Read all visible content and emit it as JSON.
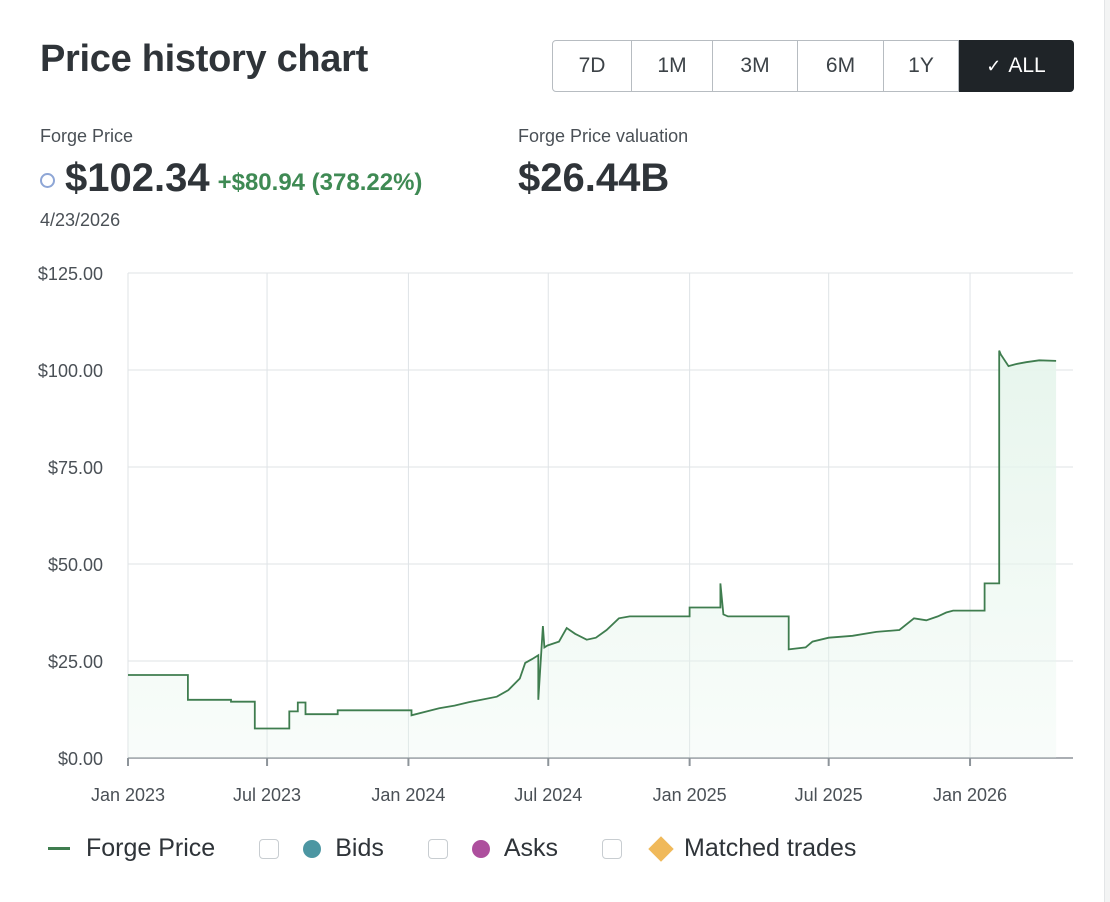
{
  "header": {
    "title": "Price history chart",
    "ranges": [
      "7D",
      "1M",
      "3M",
      "6M",
      "1Y",
      "ALL"
    ],
    "active_range": "ALL",
    "check_glyph": "✓"
  },
  "stats": {
    "price_label": "Forge Price",
    "price": "$102.34",
    "change": "+$80.94 (378.22%)",
    "valuation_label": "Forge Price valuation",
    "valuation": "$26.44B",
    "date": "4/23/2026"
  },
  "colors": {
    "line": "#3f7d4f",
    "area": "#e6f5ec",
    "grid": "#dfe3e6",
    "change_positive": "#3f8a54",
    "bids": "#4c96a2",
    "asks": "#ad4f9d",
    "matched_trades": "#f0b95a",
    "price_dot": "#8ea6d6"
  },
  "legend": {
    "forge_price": "Forge Price",
    "bids": "Bids",
    "asks": "Asks",
    "matched_trades": "Matched trades"
  },
  "chart_data": {
    "type": "area",
    "title": "",
    "xlabel": "",
    "ylabel": "",
    "x_ticks": [
      "Jan 2023",
      "Jul 2023",
      "Jan 2024",
      "Jul 2024",
      "Jan 2025",
      "Jul 2025",
      "Jan 2026"
    ],
    "y_ticks": [
      "$0.00",
      "$25.00",
      "$50.00",
      "$75.00",
      "$100.00",
      "$125.00"
    ],
    "ylim": [
      0,
      125
    ],
    "xlim": [
      "2023-01-01",
      "2026-05-15"
    ],
    "grid": true,
    "series": [
      {
        "name": "Forge Price",
        "x": [
          "2023-01-01",
          "2023-03-20",
          "2023-03-20",
          "2023-05-15",
          "2023-05-15",
          "2023-06-15",
          "2023-06-15",
          "2023-07-30",
          "2023-07-30",
          "2023-08-10",
          "2023-08-10",
          "2023-08-20",
          "2023-08-20",
          "2023-10-01",
          "2023-10-01",
          "2023-12-20",
          "2024-01-05",
          "2024-01-05",
          "2024-01-25",
          "2024-02-10",
          "2024-03-01",
          "2024-03-20",
          "2024-04-05",
          "2024-04-25",
          "2024-05-10",
          "2024-05-25",
          "2024-06-01",
          "2024-06-10",
          "2024-06-18",
          "2024-06-18",
          "2024-06-24",
          "2024-06-26",
          "2024-06-30",
          "2024-07-15",
          "2024-07-25",
          "2024-08-05",
          "2024-08-20",
          "2024-09-01",
          "2024-09-15",
          "2024-10-01",
          "2024-10-15",
          "2025-01-01",
          "2025-01-01",
          "2025-02-10",
          "2025-02-10",
          "2025-02-14",
          "2025-02-20",
          "2025-02-20",
          "2025-05-10",
          "2025-05-10",
          "2025-06-01",
          "2025-06-10",
          "2025-07-01",
          "2025-08-01",
          "2025-09-01",
          "2025-10-01",
          "2025-10-20",
          "2025-11-05",
          "2025-11-20",
          "2025-12-01",
          "2025-12-10",
          "2025-12-10",
          "2026-01-20",
          "2026-01-20",
          "2026-02-08",
          "2026-02-08",
          "2026-02-10",
          "2026-02-20",
          "2026-03-01",
          "2026-03-15",
          "2026-04-01",
          "2026-04-23"
        ],
        "values": [
          21.4,
          21.4,
          15.0,
          15.0,
          14.5,
          14.5,
          7.6,
          7.6,
          12.0,
          12.0,
          14.3,
          14.3,
          11.3,
          11.3,
          12.3,
          12.3,
          12.3,
          11.0,
          12.0,
          12.8,
          13.5,
          14.4,
          15.0,
          15.8,
          17.5,
          20.5,
          24.5,
          25.5,
          26.5,
          15.0,
          34.0,
          28.5,
          29.0,
          30.0,
          33.5,
          32.0,
          30.5,
          31.0,
          33.0,
          36.0,
          36.5,
          36.5,
          38.8,
          38.8,
          45.0,
          37.0,
          36.5,
          36.5,
          36.5,
          28.0,
          28.5,
          30.0,
          31.0,
          31.5,
          32.5,
          33.0,
          36.0,
          35.5,
          36.5,
          37.5,
          38.0,
          38.0,
          38.0,
          45.0,
          45.0,
          105.0,
          104.0,
          101.0,
          101.5,
          102.0,
          102.5,
          102.34
        ]
      }
    ]
  }
}
